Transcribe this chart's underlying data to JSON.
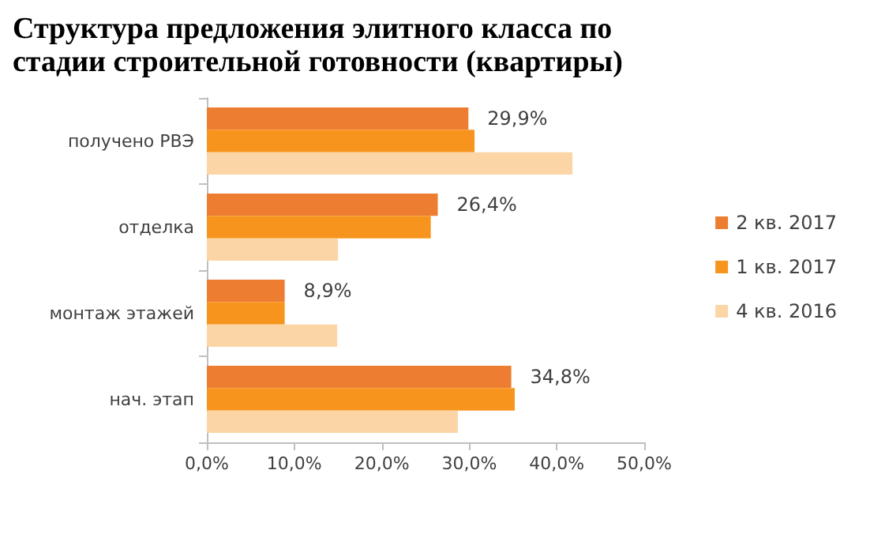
{
  "chart_data": {
    "type": "bar",
    "orientation": "horizontal",
    "title": "Структура  предложения элитного класса по стадии строительной  готовности  (квартиры)",
    "categories": [
      "получено РВЭ",
      "отделка",
      "монтаж этажей",
      "нач. этап"
    ],
    "series": [
      {
        "name": "2 кв. 2017",
        "color": "#ed7d31",
        "values": [
          29.9,
          26.4,
          8.9,
          34.8
        ],
        "value_labels": [
          "29,9%",
          "26,4%",
          "8,9%",
          "34,8%"
        ]
      },
      {
        "name": "1 кв. 2017",
        "color": "#f7941d",
        "values": [
          30.6,
          25.6,
          8.9,
          35.2
        ]
      },
      {
        "name": "4 кв. 2016",
        "color": "#fcd5a6",
        "values": [
          41.8,
          15.0,
          14.9,
          28.7
        ]
      }
    ],
    "xlim": [
      0,
      50
    ],
    "xticks": [
      {
        "value": 0,
        "label": "0,0%"
      },
      {
        "value": 10,
        "label": "10,0%"
      },
      {
        "value": 20,
        "label": "20,0%"
      },
      {
        "value": 30,
        "label": "30,0%"
      },
      {
        "value": 40,
        "label": "40,0%"
      },
      {
        "value": 50,
        "label": "50,0%"
      }
    ],
    "grid": false,
    "legend": "right"
  }
}
